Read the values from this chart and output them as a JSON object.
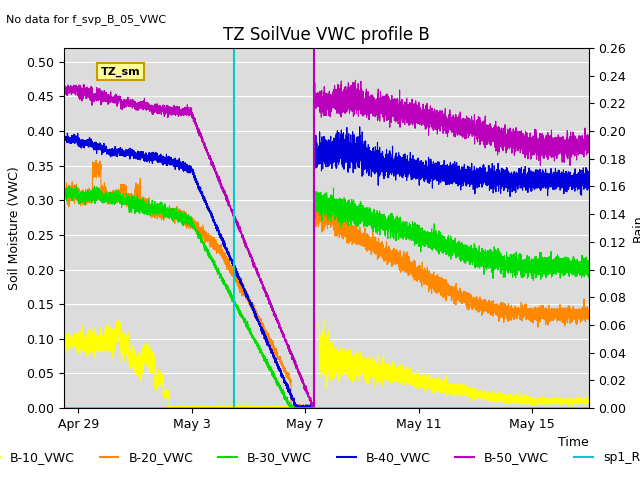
{
  "title": "TZ SoilVue VWC profile B",
  "subtitle": "No data for f_svp_B_05_VWC",
  "xlabel": "Time",
  "ylabel_left": "Soil Moisture (VWC)",
  "ylabel_right": "Rain",
  "ylim_left": [
    0.0,
    0.52
  ],
  "ylim_right": [
    0.0,
    0.26
  ],
  "background_color": "#dcdcdc",
  "fig_color": "#ffffff",
  "annotation_box": {
    "text": "TZ_sm",
    "color": "#ffff99",
    "edgecolor": "#cc9900"
  },
  "series_colors": {
    "B10": "#ffff00",
    "B20": "#ff8800",
    "B30": "#00dd00",
    "B40": "#0000dd",
    "B50": "#bb00bb",
    "rain": "#00cccc"
  },
  "x_ticks": [
    "Apr 29",
    "May 3",
    "May 7",
    "May 11",
    "May 15"
  ],
  "title_fontsize": 12,
  "axis_fontsize": 9,
  "legend_fontsize": 9
}
